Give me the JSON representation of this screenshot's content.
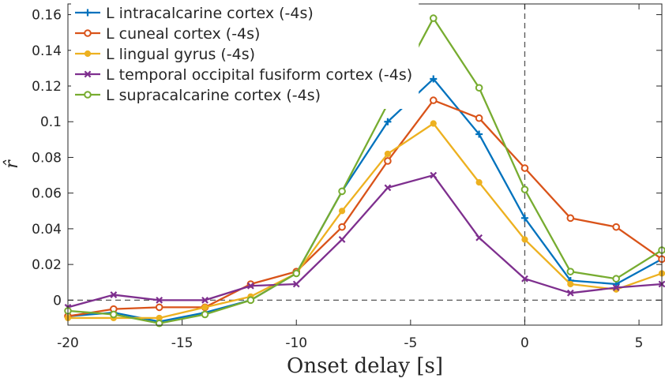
{
  "chart_data": {
    "type": "line",
    "title": "",
    "xlabel": "Onset delay [s]",
    "ylabel": "r̂",
    "xlim": [
      -20,
      6
    ],
    "ylim": [
      -0.014,
      0.166
    ],
    "xticks": [
      -20,
      -15,
      -10,
      -5,
      0,
      5
    ],
    "xtick_labels": [
      "-20",
      "-15",
      "-10",
      "-5",
      "0",
      "5"
    ],
    "yticks": [
      0,
      0.02,
      0.04,
      0.06,
      0.08,
      0.1,
      0.12,
      0.14,
      0.16
    ],
    "ytick_labels": [
      "0",
      "0.02",
      "0.04",
      "0.06",
      "0.08",
      "0.1",
      "0.12",
      "0.14",
      "0.16"
    ],
    "reference_lines": {
      "y": 0,
      "x": 0,
      "style": "dashed"
    },
    "grid": false,
    "legend_position": "top-left",
    "x": [
      -20,
      -18,
      -16,
      -14,
      -12,
      -10,
      -8,
      -6,
      -4,
      -2,
      0,
      2,
      4,
      6
    ],
    "series": [
      {
        "name": "L intracalcarine cortex (-4s)",
        "color": "#0072BD",
        "marker": "plus",
        "values": [
          -0.009,
          -0.007,
          -0.012,
          -0.007,
          0.0,
          0.015,
          0.061,
          0.1,
          0.124,
          0.093,
          0.046,
          0.011,
          0.009,
          0.023
        ]
      },
      {
        "name": "L cuneal cortex (-4s)",
        "color": "#D95319",
        "marker": "circle",
        "values": [
          -0.009,
          -0.005,
          -0.004,
          -0.004,
          0.009,
          0.016,
          0.041,
          0.078,
          0.112,
          0.102,
          0.074,
          0.046,
          0.041,
          0.023
        ]
      },
      {
        "name": "L lingual gyrus (-4s)",
        "color": "#EDB120",
        "marker": "dot",
        "values": [
          -0.01,
          -0.01,
          -0.01,
          -0.004,
          0.002,
          0.015,
          0.05,
          0.082,
          0.099,
          0.066,
          0.034,
          0.009,
          0.006,
          0.015
        ]
      },
      {
        "name": "L temporal occipital fusiform cortex (-4s)",
        "color": "#7E2F8E",
        "marker": "cross",
        "values": [
          -0.004,
          0.003,
          0.0,
          0.0,
          0.008,
          0.009,
          0.034,
          0.063,
          0.07,
          0.035,
          0.012,
          0.004,
          0.007,
          0.009
        ]
      },
      {
        "name": "L supracalcarine cortex (-4s)",
        "color": "#77AC30",
        "marker": "circle",
        "values": [
          -0.006,
          -0.008,
          -0.013,
          -0.008,
          0.0,
          0.015,
          0.061,
          0.11,
          0.158,
          0.119,
          0.062,
          0.016,
          0.012,
          0.028
        ]
      }
    ]
  }
}
